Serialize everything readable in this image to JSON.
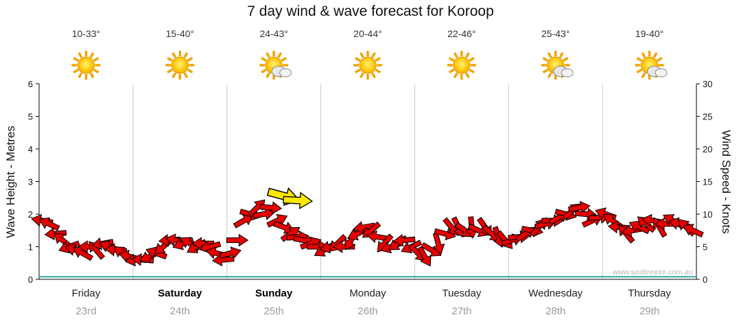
{
  "title": "7 day wind & wave forecast for Koroop",
  "watermark": "www.seabreeze.com.au",
  "axes": {
    "left_label": "Wave Height - Metres",
    "right_label": "Wind Speed - Knots"
  },
  "days": [
    {
      "name": "Friday",
      "date": "23rd",
      "temp": "10-33°",
      "icon": "sun",
      "bold": false
    },
    {
      "name": "Saturday",
      "date": "24th",
      "temp": "15-40°",
      "icon": "sun",
      "bold": true
    },
    {
      "name": "Sunday",
      "date": "25th",
      "temp": "24-43°",
      "icon": "sun-cloud",
      "bold": true
    },
    {
      "name": "Monday",
      "date": "26th",
      "temp": "20-44°",
      "icon": "sun",
      "bold": false
    },
    {
      "name": "Tuesday",
      "date": "27th",
      "temp": "22-46°",
      "icon": "sun",
      "bold": false
    },
    {
      "name": "Wednesday",
      "date": "28th",
      "temp": "25-43°",
      "icon": "sun-cloud",
      "bold": false
    },
    {
      "name": "Thursday",
      "date": "29th",
      "temp": "19-40°",
      "icon": "sun-cloud",
      "bold": false
    }
  ],
  "chart_data": {
    "type": "wind-arrow-series",
    "title": "7 day wind & wave forecast for Koroop",
    "categories": [
      "Friday 23rd",
      "Saturday 24th",
      "Sunday 25th",
      "Monday 26th",
      "Tuesday 27th",
      "Wednesday 28th",
      "Thursday 29th"
    ],
    "left_axis": {
      "label": "Wave Height - Metres",
      "min": 0,
      "max": 6,
      "step": 1
    },
    "right_axis": {
      "label": "Wind Speed - Knots",
      "min": 0,
      "max": 30,
      "step": 5
    },
    "grid": "vertical-day-separators",
    "wave_line": {
      "color": "#2FA3A0",
      "value_m": 0.08
    },
    "wind_arrows": {
      "color": "#E60000",
      "outline": "#000000",
      "units": "knots",
      "speeds": [
        9,
        8.5,
        7,
        6,
        5,
        4.5,
        4,
        5,
        4.5,
        5.5,
        5,
        4.5,
        4,
        3.5,
        3,
        3,
        3.5,
        4,
        5,
        6,
        6,
        5.5,
        5.5,
        5,
        5.5,
        5,
        4,
        3,
        4,
        6,
        9,
        10,
        11,
        10,
        11,
        9,
        8,
        7,
        6.5,
        6,
        5.5,
        5,
        4.5,
        5,
        5.5,
        5,
        6,
        7,
        8,
        7.5,
        6.5,
        5.5,
        5,
        5.5,
        6,
        5,
        4,
        3.5,
        4.5,
        5.5,
        7,
        8,
        8,
        7.5,
        8,
        7.5,
        8,
        7,
        6.5,
        6,
        6,
        6.5,
        7,
        7.5,
        8,
        8.5,
        9,
        9.5,
        10,
        10.5,
        11,
        10,
        9,
        9.5,
        10,
        9,
        8,
        7,
        7.5,
        8,
        8.5,
        9,
        8,
        8.5,
        9,
        8.5,
        8,
        7.5
      ],
      "dirs": [
        190,
        205,
        175,
        220,
        160,
        195,
        210,
        180,
        230,
        170,
        200,
        185,
        215,
        195,
        170,
        185,
        155,
        200,
        140,
        175,
        190,
        160,
        210,
        150,
        180,
        165,
        195,
        175,
        -15,
        0,
        -30,
        15,
        -45,
        -10,
        5,
        -25,
        20,
        -35,
        -5,
        10,
        -20,
        0,
        150,
        165,
        135,
        180,
        120,
        155,
        170,
        140,
        190,
        130,
        160,
        145,
        175,
        155,
        45,
        60,
        30,
        75,
        15,
        50,
        65,
        35,
        85,
        25,
        55,
        40,
        70,
        50,
        -20,
        -5,
        -35,
        10,
        -50,
        -15,
        0,
        -30,
        15,
        -40,
        -10,
        5,
        -25,
        -5,
        200,
        215,
        185,
        230,
        170,
        205,
        220,
        190,
        240,
        180,
        210,
        195,
        225,
        205
      ]
    },
    "highlight_arrows": {
      "color": "#FFE800",
      "points": [
        {
          "day": 2.6,
          "kn": 12.8,
          "dir": 15,
          "scale": 1.5
        },
        {
          "day": 2.75,
          "kn": 12.1,
          "dir": 3,
          "scale": 1.35
        }
      ]
    }
  },
  "colors": {
    "arrow_red": "#E60000",
    "arrow_yellow": "#FFE800",
    "gridline": "#C9C9C9",
    "axis": "#000000",
    "wave_line": "#2FA3A0",
    "sun_core": "#F7A600",
    "sun_ray": "#F0A400",
    "date_gray": "#999999"
  }
}
